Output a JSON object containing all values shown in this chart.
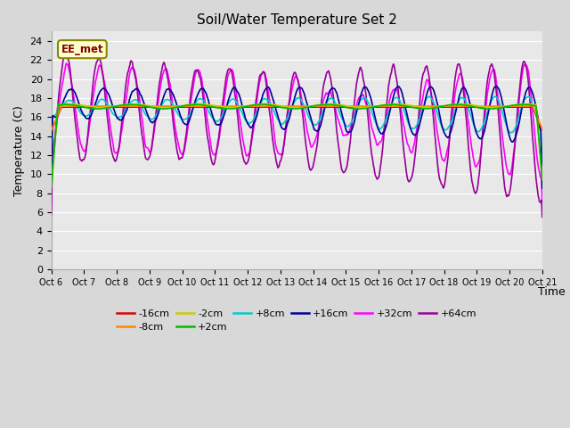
{
  "title": "Soil/Water Temperature Set 2",
  "xlabel": "Time",
  "ylabel": "Temperature (C)",
  "ylim": [
    0,
    25
  ],
  "yticks": [
    0,
    2,
    4,
    6,
    8,
    10,
    12,
    14,
    16,
    18,
    20,
    22,
    24
  ],
  "x_labels": [
    "Oct 6",
    "Oct 7",
    "Oct 8",
    "Oct 9",
    "Oct 10",
    "Oct 11",
    "Oct 12",
    "Oct 13",
    "Oct 14",
    "Oct 15",
    "Oct 16",
    "Oct 17",
    "Oct 18",
    "Oct 19",
    "Oct 20",
    "Oct 21"
  ],
  "plot_bg_color": "#e8e8e8",
  "fig_bg_color": "#d8d8d8",
  "grid_color": "#ffffff",
  "series_colors": {
    "-16cm": "#dd0000",
    "-8cm": "#ff8800",
    "-2cm": "#cccc00",
    "+2cm": "#00bb00",
    "+8cm": "#00cccc",
    "+16cm": "#000099",
    "+32cm": "#ff00ff",
    "+64cm": "#990099"
  },
  "annotation_text": "EE_met",
  "annotation_color": "#880000",
  "annotation_bg": "#ffffcc",
  "annotation_border": "#888800",
  "legend_row1": [
    "-16cm",
    "-8cm",
    "-2cm",
    "+2cm",
    "+8cm",
    "+16cm"
  ],
  "legend_row2": [
    "+32cm",
    "+64cm"
  ]
}
